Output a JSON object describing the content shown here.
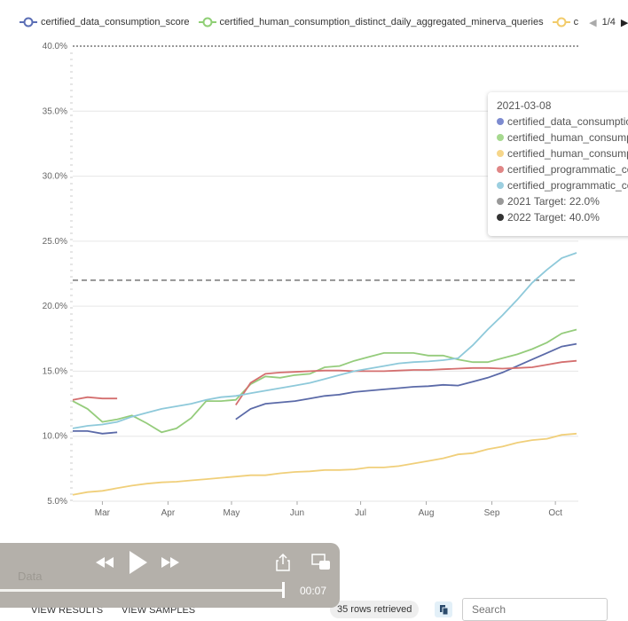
{
  "legend": {
    "items": [
      {
        "label": "certified_data_consumption_score",
        "color": "#5b6eb5"
      },
      {
        "label": "certified_human_consumption_distinct_daily_aggregated_minerva_queries",
        "color": "#8fcf75"
      },
      {
        "label": "c",
        "color": "#f2cb6a"
      }
    ],
    "page": "1/4"
  },
  "tooltip": {
    "date": "2021-03-08",
    "items": [
      {
        "label": "certified_data_consumption_score",
        "color": "#7d8bd0"
      },
      {
        "label": "certified_human_consumption_distinct",
        "color": "#a6d98f"
      },
      {
        "label": "certified_human_consumption_queries",
        "color": "#f6d68a"
      },
      {
        "label": "certified_programmatic_consumption",
        "color": "#e08686"
      },
      {
        "label": "certified_programmatic_consumption_queries",
        "color": "#9ccfe0"
      },
      {
        "label": "2021 Target: 22.0%",
        "color": "#999999"
      },
      {
        "label": "2022 Target: 40.0%",
        "color": "#333333"
      }
    ]
  },
  "chart_data": {
    "type": "line",
    "ylim": [
      5,
      40
    ],
    "yticks": [
      "5.0%",
      "10.0%",
      "15.0%",
      "20.0%",
      "25.0%",
      "30.0%",
      "35.0%",
      "40.0%"
    ],
    "ytick_values": [
      5,
      10,
      15,
      20,
      25,
      30,
      35,
      40
    ],
    "start_date": "2021-02-15",
    "interval_days": 7,
    "end_date": "2021-10-11",
    "xticks": [
      {
        "label": "Mar",
        "date": "2021-03-01"
      },
      {
        "label": "Apr",
        "date": "2021-04-01"
      },
      {
        "label": "May",
        "date": "2021-05-01"
      },
      {
        "label": "Jun",
        "date": "2021-06-01"
      },
      {
        "label": "Jul",
        "date": "2021-07-01"
      },
      {
        "label": "Aug",
        "date": "2021-08-01"
      },
      {
        "label": "Sep",
        "date": "2021-09-01"
      },
      {
        "label": "Oct",
        "date": "2021-10-01"
      }
    ],
    "targets": [
      {
        "name": "2021 Target",
        "value": 22,
        "color": "#777777"
      },
      {
        "name": "2022 Target",
        "value": 40,
        "color": "#333333"
      }
    ],
    "series": [
      {
        "name": "certified_data_consumption_score",
        "color": "#5b6aa8",
        "values": [
          10.4,
          10.4,
          10.2,
          10.3,
          null,
          null,
          null,
          null,
          null,
          null,
          null,
          11.3,
          12.1,
          12.5,
          12.6,
          12.7,
          12.9,
          13.1,
          13.2,
          13.4,
          13.5,
          13.6,
          13.7,
          13.8,
          13.85,
          13.95,
          13.9,
          14.2,
          14.5,
          14.9,
          15.4,
          15.9,
          16.4,
          16.9,
          17.1
        ]
      },
      {
        "name": "certified_human_consumption_distinct_daily_aggregated_minerva_queries",
        "color": "#95cc7c",
        "values": [
          12.7,
          12.1,
          11.1,
          11.3,
          11.6,
          11.0,
          10.3,
          10.6,
          11.4,
          12.7,
          12.7,
          12.8,
          14.0,
          14.6,
          14.5,
          14.7,
          14.8,
          15.3,
          15.4,
          15.8,
          16.1,
          16.4,
          16.4,
          16.4,
          16.2,
          16.2,
          15.9,
          15.7,
          15.7,
          16.0,
          16.3,
          16.7,
          17.2,
          17.9,
          18.2
        ]
      },
      {
        "name": "certified_human_consumption_queries",
        "color": "#f0cf7a",
        "values": [
          5.5,
          5.7,
          5.8,
          6.0,
          6.2,
          6.35,
          6.45,
          6.5,
          6.6,
          6.7,
          6.8,
          6.9,
          7.0,
          7.0,
          7.15,
          7.25,
          7.3,
          7.4,
          7.4,
          7.45,
          7.6,
          7.6,
          7.7,
          7.9,
          8.1,
          8.3,
          8.6,
          8.7,
          9.0,
          9.2,
          9.5,
          9.7,
          9.8,
          10.1,
          10.2
        ]
      },
      {
        "name": "certified_programmatic_consumption",
        "color": "#d46f6f",
        "values": [
          12.8,
          13.0,
          12.9,
          12.9,
          null,
          null,
          null,
          null,
          null,
          null,
          null,
          12.4,
          14.1,
          14.8,
          14.9,
          14.95,
          15.0,
          15.05,
          15.05,
          15.0,
          15.0,
          15.0,
          15.05,
          15.1,
          15.1,
          15.15,
          15.2,
          15.25,
          15.25,
          15.2,
          15.25,
          15.3,
          15.5,
          15.7,
          15.8
        ]
      },
      {
        "name": "certified_programmatic_consumption_queries",
        "color": "#8ec9da",
        "values": [
          10.6,
          10.8,
          10.9,
          11.1,
          11.5,
          11.8,
          12.1,
          12.3,
          12.5,
          12.8,
          13.0,
          13.1,
          13.3,
          13.5,
          13.7,
          13.9,
          14.1,
          14.4,
          14.7,
          15.0,
          15.2,
          15.4,
          15.6,
          15.7,
          15.75,
          15.85,
          16.0,
          17.0,
          18.2,
          19.3,
          20.5,
          21.8,
          22.8,
          23.7,
          24.1
        ]
      }
    ]
  },
  "player": {
    "time": "00:07",
    "progress": 0.83,
    "section": "Data"
  },
  "toolbar": {
    "view_results": "VIEW RESULTS",
    "view_samples": "VIEW SAMPLES",
    "rows": "35 rows retrieved",
    "search_placeholder": "Search"
  }
}
